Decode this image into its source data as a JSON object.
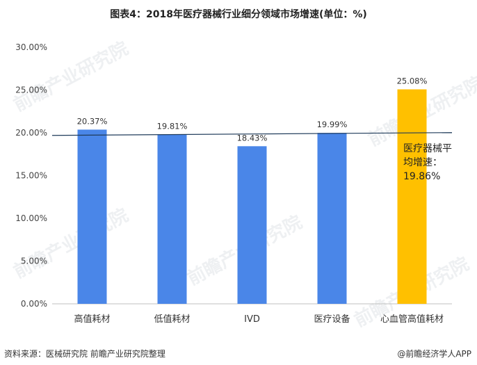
{
  "title": "图表4：2018年医疗器械行业细分领域市场增速(单位：%)",
  "chart_data": {
    "type": "bar",
    "categories": [
      "高值耗材",
      "低值耗材",
      "IVD",
      "医疗设备",
      "心血管高值耗材"
    ],
    "values": [
      20.37,
      19.81,
      18.43,
      19.99,
      25.08
    ],
    "data_labels": [
      "20.37%",
      "19.81%",
      "18.43%",
      "19.99%",
      "25.08%"
    ],
    "bar_colors": [
      "#4a86e8",
      "#4a86e8",
      "#4a86e8",
      "#4a86e8",
      "#ffc000"
    ],
    "ylim": [
      0,
      30
    ],
    "yticks": [
      0,
      5,
      10,
      15,
      20,
      25,
      30
    ],
    "ytick_labels": [
      "0.00%",
      "5.00%",
      "10.00%",
      "15.00%",
      "20.00%",
      "25.00%",
      "30.00%"
    ],
    "reference_line": {
      "value": 19.86,
      "color": "#1f3b5a"
    },
    "annotation": [
      "医疗器械平",
      "均增速：",
      "19.86%"
    ],
    "grid": false,
    "xlabel": "",
    "ylabel": ""
  },
  "footer": {
    "source": "资料来源：医械研究院 前瞻产业研究院整理",
    "brand": "@前瞻经济学人APP"
  },
  "watermark": "前瞻产业研究院"
}
